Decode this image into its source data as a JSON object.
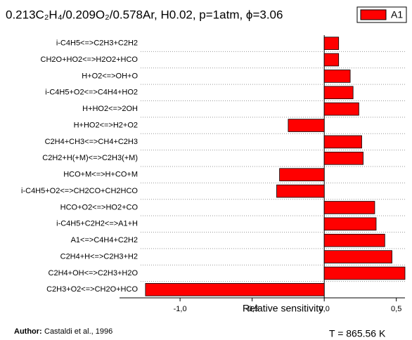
{
  "chart_data": {
    "type": "bar",
    "orientation": "horizontal",
    "title": "0.213C₂H₄/0.209O₂/0.578Ar, H0.02, p=1atm, ϕ=3.06",
    "x_label": "Relative sensitivity",
    "annotations": {
      "author_label": "Author:",
      "author": "Castaldi et al., 1996",
      "temperature": "T = 865.56 K"
    },
    "categories": [
      "i-C4H5<=>C2H3+C2H2",
      "CH2O+HO2<=>H2O2+HCO",
      "H+O2<=>OH+O",
      "i-C4H5+O2<=>C4H4+HO2",
      "H+HO2<=>2OH",
      "H+HO2<=>H2+O2",
      "C2H4+CH3<=>CH4+C2H3",
      "C2H2+H(+M)<=>C2H3(+M)",
      "HCO+M<=>H+CO+M",
      "i-C4H5+O2<=>CH2CO+CH2HCO",
      "HCO+O2<=>HO2+CO",
      "i-C4H5+C2H2<=>A1+H",
      "A1<=>C4H4+C2H2",
      "C2H4+H<=>C2H3+H2",
      "C2H4+OH<=>C2H3+H2O",
      "C2H3+O2<=>CH2O+HCO"
    ],
    "series": [
      {
        "name": "A1",
        "color": "#ff0000",
        "values": [
          0.1,
          0.1,
          0.18,
          0.2,
          0.24,
          -0.25,
          0.26,
          0.27,
          -0.31,
          -0.33,
          0.35,
          0.36,
          0.42,
          0.47,
          0.56,
          -1.24
        ]
      }
    ],
    "xlim": [
      -1.42,
      0.56
    ],
    "xticks": [
      {
        "value": -1.0,
        "label": "-1,0"
      },
      {
        "value": -0.5,
        "label": "-0,5"
      },
      {
        "value": 0.0,
        "label": "0,0"
      },
      {
        "value": 0.5,
        "label": "0,5"
      }
    ],
    "legend": "top-right"
  }
}
